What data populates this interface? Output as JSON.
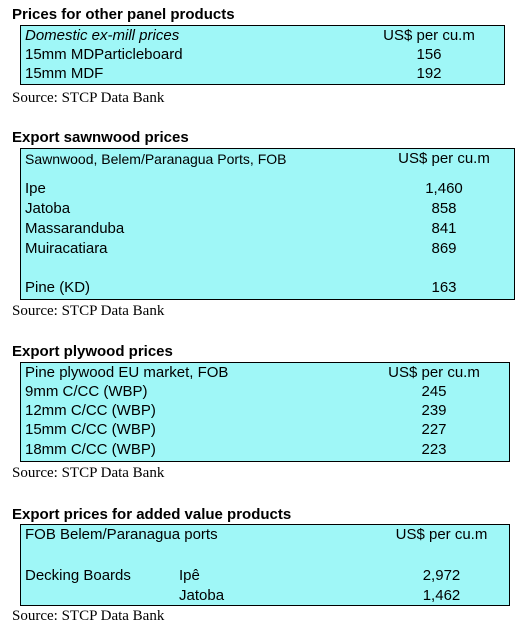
{
  "panel": {
    "title": "Prices for other panel products",
    "header_label": "Domestic ex-mill prices",
    "header_unit": "US$ per cu.m",
    "rows": [
      {
        "label": "15mm MDParticleboard",
        "value": "156"
      },
      {
        "label": "15mm MDF",
        "value": "192"
      }
    ],
    "source": "Source: STCP Data Bank"
  },
  "sawnwood": {
    "title": "Export sawnwood prices",
    "header_label": "Sawnwood, Belem/Paranagua Ports, FOB",
    "header_unit": "US$ per cu.m",
    "rows": [
      {
        "label": "Ipe",
        "value": "1,460"
      },
      {
        "label": "Jatoba",
        "value": "858"
      },
      {
        "label": "Massaranduba",
        "value": "841"
      },
      {
        "label": "Muiracatiara",
        "value": "869"
      },
      {
        "label": "Pine (KD)",
        "value": "163"
      }
    ],
    "source": "Source: STCP Data Bank"
  },
  "plywood": {
    "title": "Export plywood prices",
    "header_label": "Pine plywood EU market, FOB",
    "header_unit": "US$ per cu.m",
    "rows": [
      {
        "label": "9mm C/CC (WBP)",
        "value": "245"
      },
      {
        "label": "12mm C/CC (WBP)",
        "value": "239"
      },
      {
        "label": "15mm C/CC (WBP)",
        "value": "227"
      },
      {
        "label": "18mm C/CC (WBP)",
        "value": "223"
      }
    ],
    "source": "Source: STCP Data Bank"
  },
  "added_value": {
    "title": "Export prices for added value products",
    "header_label": "FOB Belem/Paranagua ports",
    "header_unit": "US$ per cu.m",
    "product": "Decking Boards",
    "rows": [
      {
        "label": "Ipê",
        "value": "2,972"
      },
      {
        "label": "Jatoba",
        "value": "1,462"
      }
    ],
    "source": "Source: STCP Data Bank"
  }
}
